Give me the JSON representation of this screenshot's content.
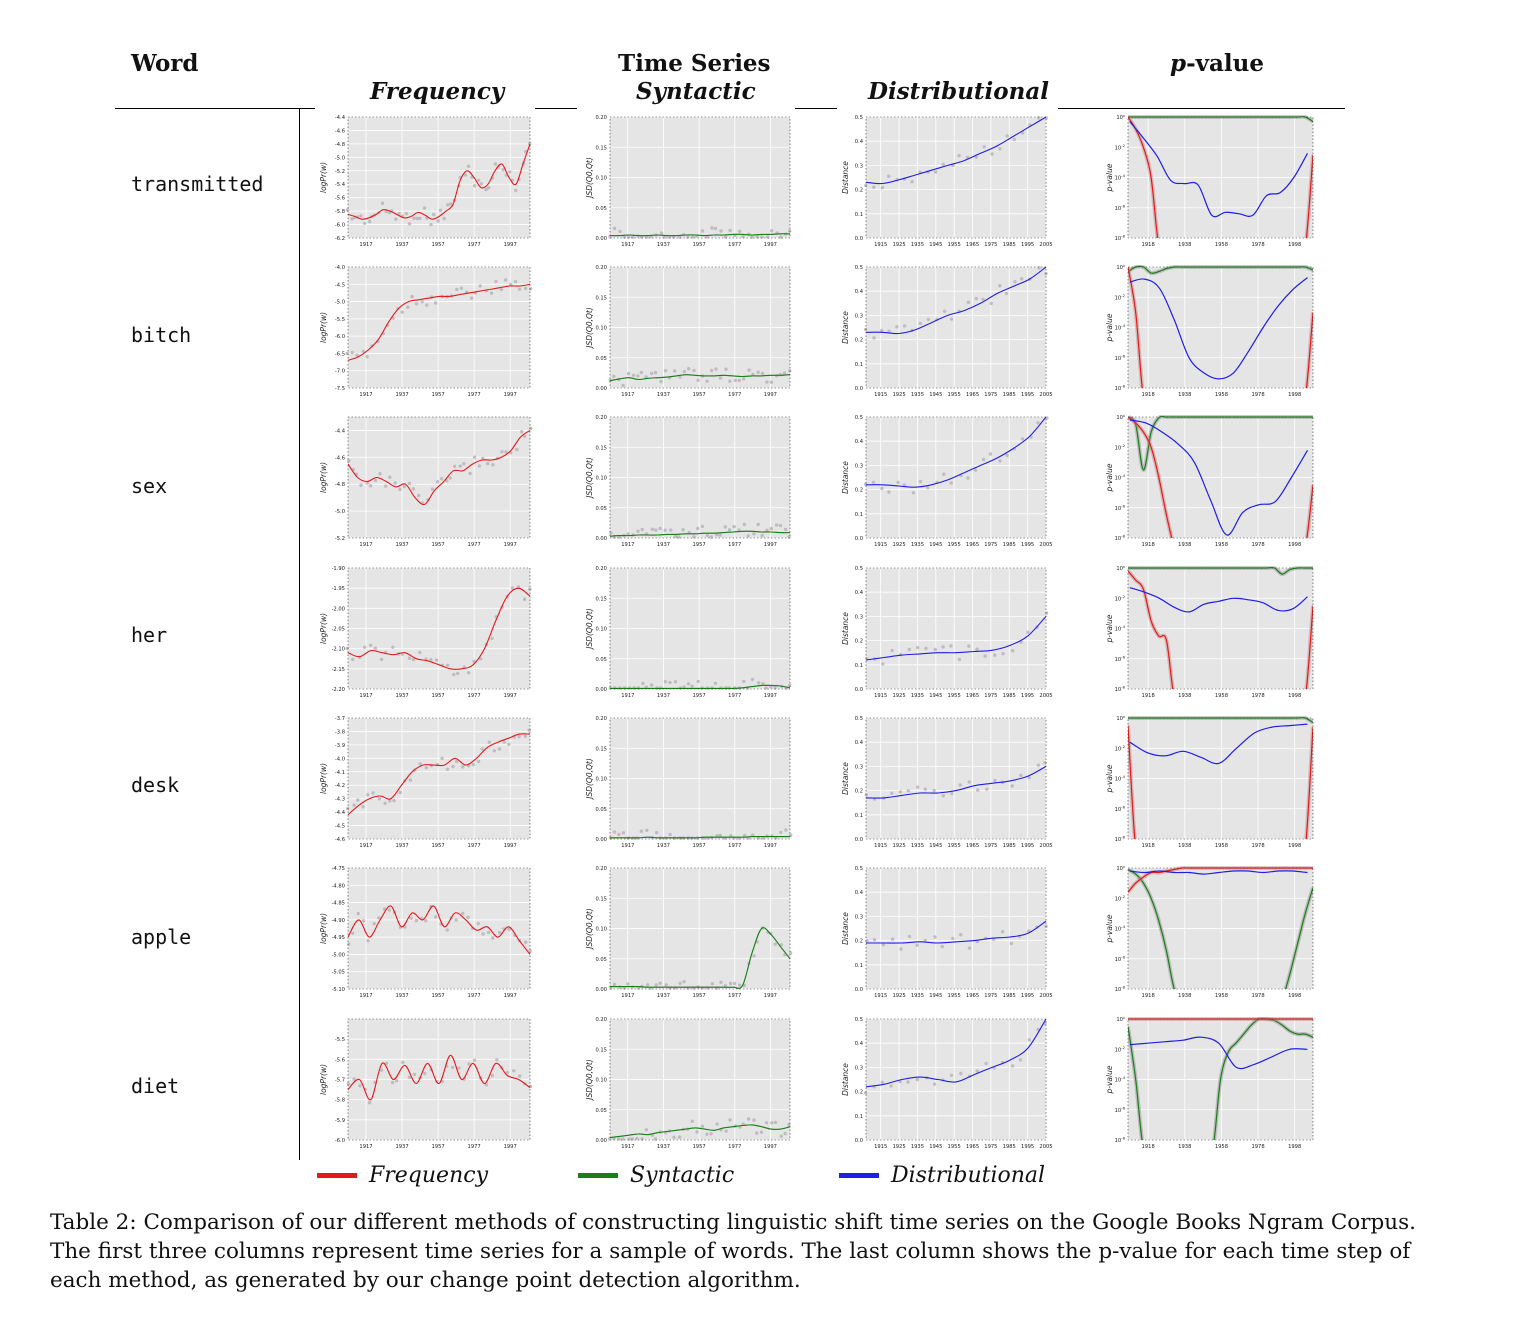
{
  "header": {
    "word": "Word",
    "time_series": "Time Series",
    "frequency": "Frequency",
    "syntactic": "Syntactic",
    "distributional": "Distributional",
    "pvalue_prefix": "p",
    "pvalue_suffix": "-value"
  },
  "axes": {
    "frequency_ylabel": "logPr(w)",
    "syntactic_ylabel": "JSD(Q0,Qt)",
    "distributional_ylabel": "Distance",
    "pvalue_ylabel": "p-value",
    "ts_xticks": [
      "1917",
      "1937",
      "1957",
      "1977",
      "1997"
    ],
    "dist_xticks": [
      "1915",
      "1925",
      "1935",
      "1945",
      "1955",
      "1965",
      "1975",
      "1985",
      "1995",
      "2005"
    ],
    "pv_xticks": [
      "1918",
      "1938",
      "1958",
      "1978",
      "1998"
    ],
    "syn_yticks": [
      "0.00",
      "0.05",
      "0.10",
      "0.15",
      "0.20"
    ],
    "dist_yticks": [
      "0.0",
      "0.1",
      "0.2",
      "0.3",
      "0.4",
      "0.5"
    ],
    "pv_yticks": [
      "10^-8",
      "10^-6",
      "10^-4",
      "10^-2",
      "10^0"
    ]
  },
  "colors": {
    "frequency": "#e31a1c",
    "syntactic": "#1a7f1a",
    "distributional": "#1f1fe6",
    "plot_bg": "#e5e5e5"
  },
  "rows": [
    {
      "word": "transmitted",
      "freq": {
        "yticks": [
          "-4.4",
          "-4.6",
          "-4.8",
          "-5.0",
          "-5.2",
          "-5.4",
          "-5.6",
          "-5.8",
          "-6.0",
          "-6.2"
        ],
        "ymin": -6.2,
        "ymax": -4.4,
        "values": [
          -5.85,
          -5.88,
          -5.92,
          -5.9,
          -5.85,
          -5.78,
          -5.8,
          -5.85,
          -5.9,
          -5.88,
          -5.82,
          -5.86,
          -5.92,
          -5.88,
          -5.8,
          -5.7,
          -5.35,
          -5.2,
          -5.3,
          -5.45,
          -5.4,
          -5.2,
          -5.1,
          -5.3,
          -5.4,
          -5.1,
          -4.8
        ]
      },
      "syn": {
        "values": [
          0.004,
          0.004,
          0.005,
          0.004,
          0.004,
          0.005,
          0.004,
          0.004,
          0.005,
          0.005,
          0.004,
          0.005,
          0.005,
          0.006,
          0.006,
          0.005,
          0.006,
          0.006,
          0.007,
          0.007
        ]
      },
      "dist": {
        "values": [
          0.23,
          0.225,
          0.24,
          0.26,
          0.28,
          0.3,
          0.32,
          0.35,
          0.38,
          0.42,
          0.46,
          0.5
        ]
      },
      "pv": {
        "freq": [
          0,
          -0.8,
          -2.0,
          -4,
          -8.5,
          -9,
          -9,
          -9,
          -9,
          -9,
          -9,
          -9,
          -9,
          -9,
          -9,
          -9,
          -9,
          -9,
          -9,
          -9,
          -9,
          -9,
          -9,
          -9,
          -2.5
        ],
        "syn": [
          0,
          0,
          0,
          0,
          0,
          0,
          0,
          0,
          0,
          0,
          0,
          0,
          0,
          0,
          0,
          0,
          0,
          0,
          0,
          0,
          0,
          0,
          0,
          0,
          -0.3
        ],
        "dist": [
          -0.3,
          -1.4,
          -2.6,
          -4.2,
          -4.4,
          -4.5,
          -6.5,
          -6.3,
          -6.4,
          -6.5,
          -5.2,
          -5.0,
          -4.0,
          -2.4
        ]
      }
    },
    {
      "word": "bitch",
      "freq": {
        "yticks": [
          "-4.0",
          "-4.5",
          "-5.0",
          "-5.5",
          "-6.0",
          "-6.5",
          "-7.0",
          "-7.5"
        ],
        "ymin": -7.5,
        "ymax": -4.0,
        "values": [
          -6.7,
          -6.6,
          -6.4,
          -6.1,
          -5.6,
          -5.2,
          -5.0,
          -4.95,
          -4.9,
          -4.85,
          -4.85,
          -4.8,
          -4.75,
          -4.7,
          -4.65,
          -4.6,
          -4.55,
          -4.55,
          -4.5
        ]
      },
      "syn": {
        "values": [
          0.012,
          0.015,
          0.017,
          0.014,
          0.016,
          0.017,
          0.018,
          0.02,
          0.022,
          0.021,
          0.02,
          0.02,
          0.021,
          0.02,
          0.019,
          0.02,
          0.02,
          0.021,
          0.021,
          0.022
        ]
      },
      "dist": {
        "values": [
          0.23,
          0.23,
          0.225,
          0.24,
          0.27,
          0.3,
          0.32,
          0.35,
          0.39,
          0.42,
          0.45,
          0.5
        ]
      },
      "pv": {
        "freq": [
          0,
          -3,
          -9,
          -9,
          -9,
          -9,
          -9,
          -9,
          -9,
          -9,
          -9,
          -9,
          -9,
          -9,
          -9,
          -9,
          -9,
          -9,
          -9,
          -9,
          -9,
          -9,
          -9,
          -9,
          -3
        ],
        "syn": [
          -0.3,
          0,
          0,
          -0.4,
          -0.3,
          -0.1,
          0,
          0,
          0,
          0,
          0,
          0,
          0,
          0,
          0,
          0,
          0,
          0,
          0,
          0,
          0,
          0,
          0,
          0,
          -0.2
        ],
        "dist": [
          -1.0,
          -0.8,
          -1.4,
          -3.5,
          -6.0,
          -7.0,
          -7.4,
          -7.0,
          -5.6,
          -4.0,
          -2.6,
          -1.5,
          -0.7
        ]
      }
    },
    {
      "word": "sex",
      "freq": {
        "yticks": [
          "-4.4",
          "-4.6",
          "-4.8",
          "-5.0",
          "-5.2"
        ],
        "ymin": -5.2,
        "ymax": -4.3,
        "values": [
          -4.65,
          -4.75,
          -4.78,
          -4.75,
          -4.78,
          -4.82,
          -4.8,
          -4.9,
          -4.95,
          -4.85,
          -4.78,
          -4.7,
          -4.7,
          -4.65,
          -4.62,
          -4.62,
          -4.6,
          -4.55,
          -4.45,
          -4.4
        ]
      },
      "syn": {
        "values": [
          0.003,
          0.004,
          0.004,
          0.005,
          0.005,
          0.005,
          0.006,
          0.006,
          0.007,
          0.007,
          0.008,
          0.008,
          0.009,
          0.01,
          0.011,
          0.011,
          0.01,
          0.01,
          0.009,
          0.009
        ]
      },
      "dist": {
        "values": [
          0.22,
          0.22,
          0.215,
          0.21,
          0.22,
          0.24,
          0.27,
          0.3,
          0.33,
          0.37,
          0.42,
          0.5
        ]
      },
      "pv": {
        "freq": [
          0,
          -0.4,
          -1.0,
          -2.0,
          -4.0,
          -6.5,
          -8.5,
          -9,
          -9,
          -9,
          -9,
          -9,
          -9,
          -9,
          -9,
          -9,
          -9,
          -9,
          -9,
          -9,
          -9,
          -9,
          -9,
          -9,
          -4.5
        ],
        "syn": [
          0,
          -0.5,
          -3.5,
          -1.0,
          -0.05,
          0,
          0,
          0,
          0,
          0,
          0,
          0,
          0,
          0,
          0,
          0,
          0,
          0,
          0,
          0,
          0,
          0,
          0,
          0,
          0
        ],
        "dist": [
          -0.2,
          -0.4,
          -1.0,
          -1.8,
          -3.0,
          -5.5,
          -7.8,
          -6.3,
          -5.8,
          -5.6,
          -4.0,
          -2.2
        ]
      }
    },
    {
      "word": "her",
      "freq": {
        "yticks": [
          "-1.90",
          "-1.95",
          "-2.00",
          "-2.05",
          "-2.10",
          "-2.15",
          "-2.20"
        ],
        "ymin": -2.2,
        "ymax": -1.9,
        "values": [
          -2.11,
          -2.12,
          -2.105,
          -2.11,
          -2.115,
          -2.11,
          -2.125,
          -2.13,
          -2.14,
          -2.15,
          -2.15,
          -2.14,
          -2.1,
          -2.03,
          -1.97,
          -1.95,
          -1.97
        ]
      },
      "syn": {
        "values": [
          0.001,
          0.001,
          0.001,
          0.001,
          0.001,
          0.001,
          0.001,
          0.001,
          0.001,
          0.001,
          0.001,
          0.001,
          0.001,
          0.001,
          0.002,
          0.004,
          0.006,
          0.006,
          0.005,
          0.002
        ]
      },
      "dist": {
        "values": [
          0.12,
          0.13,
          0.14,
          0.145,
          0.15,
          0.15,
          0.155,
          0.16,
          0.18,
          0.22,
          0.3
        ]
      },
      "pv": {
        "freq": [
          -0.2,
          -0.8,
          -1.4,
          -3.5,
          -4.5,
          -4.8,
          -9,
          -9,
          -9,
          -9,
          -9,
          -9,
          -9,
          -9,
          -9,
          -9,
          -9,
          -9,
          -9,
          -9,
          -9,
          -9,
          -9,
          -9,
          -2.5
        ],
        "syn": [
          0,
          0,
          0,
          0,
          0,
          0,
          0,
          0,
          0,
          0,
          0,
          0,
          0,
          0,
          0,
          0,
          0,
          0,
          0,
          0,
          -0.4,
          -0.1,
          0,
          0,
          0
        ],
        "dist": [
          -1.3,
          -1.6,
          -2.0,
          -2.6,
          -2.9,
          -2.4,
          -2.2,
          -2.0,
          -2.1,
          -2.3,
          -2.8,
          -2.7,
          -1.9
        ]
      }
    },
    {
      "word": "desk",
      "freq": {
        "yticks": [
          "-3.7",
          "-3.8",
          "-3.9",
          "-4.0",
          "-4.1",
          "-4.2",
          "-4.3",
          "-4.4",
          "-4.5",
          "-4.6"
        ],
        "ymin": -4.6,
        "ymax": -3.7,
        "values": [
          -4.42,
          -4.35,
          -4.3,
          -4.28,
          -4.3,
          -4.2,
          -4.1,
          -4.05,
          -4.05,
          -4.05,
          -4.0,
          -4.05,
          -4.0,
          -3.92,
          -3.88,
          -3.85,
          -3.82,
          -3.82
        ]
      },
      "syn": {
        "values": [
          0.002,
          0.002,
          0.002,
          0.002,
          0.003,
          0.002,
          0.002,
          0.002,
          0.002,
          0.002,
          0.003,
          0.003,
          0.003,
          0.003,
          0.003,
          0.004,
          0.004,
          0.004,
          0.004,
          0.004
        ]
      },
      "dist": {
        "values": [
          0.17,
          0.17,
          0.18,
          0.19,
          0.19,
          0.2,
          0.22,
          0.23,
          0.24,
          0.26,
          0.3
        ]
      },
      "pv": {
        "freq": [
          -0.5,
          -9,
          -9,
          -9,
          -9,
          -9,
          -9,
          -9,
          -9,
          -9,
          -9,
          -9,
          -9,
          -9,
          -9,
          -9,
          -9,
          -9,
          -9,
          -9,
          -9,
          -9,
          -9,
          -9,
          -0.6
        ],
        "syn": [
          0,
          0,
          0,
          0,
          0,
          0,
          0,
          0,
          0,
          0,
          0,
          0,
          0,
          0,
          0,
          0,
          0,
          0,
          0,
          0,
          0,
          0,
          0,
          0,
          -0.3
        ],
        "dist": [
          -1.6,
          -2.3,
          -2.5,
          -2.2,
          -2.6,
          -3.0,
          -2.0,
          -1.0,
          -0.6,
          -0.5,
          -0.4
        ]
      }
    },
    {
      "word": "apple",
      "freq": {
        "yticks": [
          "-4.75",
          "-4.80",
          "-4.85",
          "-4.90",
          "-4.95",
          "-5.00",
          "-5.05",
          "-5.10"
        ],
        "ymin": -5.1,
        "ymax": -4.75,
        "values": [
          -4.95,
          -4.9,
          -4.95,
          -4.9,
          -4.86,
          -4.92,
          -4.88,
          -4.9,
          -4.86,
          -4.92,
          -4.88,
          -4.9,
          -4.93,
          -4.92,
          -4.95,
          -4.92,
          -4.96,
          -5.0
        ]
      },
      "syn": {
        "values": [
          0.004,
          0.004,
          0.004,
          0.004,
          0.003,
          0.003,
          0.003,
          0.003,
          0.003,
          0.003,
          0.003,
          0.003,
          0.003,
          0.003,
          0.006,
          0.06,
          0.1,
          0.09,
          0.07,
          0.05
        ]
      },
      "dist": {
        "values": [
          0.19,
          0.19,
          0.19,
          0.195,
          0.19,
          0.195,
          0.2,
          0.21,
          0.215,
          0.23,
          0.28
        ]
      },
      "pv": {
        "freq": [
          -1.6,
          -1.0,
          -0.6,
          -0.3,
          -0.3,
          -0.2,
          -0.1,
          0,
          0,
          0,
          0,
          0,
          0,
          0,
          0,
          0,
          0,
          0,
          0,
          0,
          0,
          0,
          0,
          0,
          0
        ],
        "syn": [
          -0.1,
          -0.4,
          -1.0,
          -2.0,
          -3.5,
          -5.5,
          -8.0,
          -9,
          -9,
          -9,
          -9,
          -9,
          -9,
          -9,
          -9,
          -9,
          -9,
          -9,
          -9,
          -9,
          -9,
          -7,
          -5,
          -3,
          -1.3
        ],
        "dist": [
          -0.2,
          -0.3,
          -0.2,
          -0.3,
          -0.3,
          -0.4,
          -0.3,
          -0.2,
          -0.2,
          -0.3,
          -0.2,
          -0.2,
          -0.3
        ]
      }
    },
    {
      "word": "diet",
      "freq": {
        "yticks": [
          "-5.5",
          "-5.6",
          "-5.7",
          "-5.8",
          "-5.9",
          "-6.0"
        ],
        "ymin": -6.0,
        "ymax": -5.4,
        "values": [
          -5.75,
          -5.7,
          -5.8,
          -5.62,
          -5.7,
          -5.63,
          -5.72,
          -5.62,
          -5.72,
          -5.58,
          -5.7,
          -5.62,
          -5.72,
          -5.62,
          -5.68,
          -5.7,
          -5.74
        ]
      },
      "syn": {
        "values": [
          0.004,
          0.006,
          0.008,
          0.01,
          0.009,
          0.012,
          0.014,
          0.016,
          0.018,
          0.02,
          0.018,
          0.016,
          0.02,
          0.022,
          0.024,
          0.025,
          0.022,
          0.018,
          0.018,
          0.022
        ]
      },
      "dist": {
        "values": [
          0.22,
          0.23,
          0.25,
          0.26,
          0.25,
          0.24,
          0.27,
          0.3,
          0.33,
          0.38,
          0.5
        ]
      },
      "pv": {
        "freq": [
          0,
          0,
          0,
          0,
          0,
          0,
          0,
          0,
          0,
          0,
          0,
          0,
          0,
          0,
          0,
          0,
          0,
          0,
          0,
          0,
          0,
          0,
          0,
          0,
          0
        ],
        "syn": [
          -0.5,
          -4,
          -9,
          -9,
          -9,
          -9,
          -9,
          -9,
          -9,
          -9,
          -9,
          -9,
          -4,
          -2.2,
          -1.6,
          -1.0,
          -0.4,
          0,
          0,
          -0.1,
          -0.4,
          -0.8,
          -1.0,
          -1.0,
          -1.2
        ],
        "dist": [
          -1.7,
          -1.6,
          -1.5,
          -1.4,
          -1.2,
          -1.6,
          -3.2,
          -3.0,
          -2.5,
          -2.0,
          -2.0
        ]
      }
    }
  ],
  "legend": [
    {
      "label": "Frequency",
      "color": "#e31a1c"
    },
    {
      "label": "Syntactic",
      "color": "#1a7f1a"
    },
    {
      "label": "Distributional",
      "color": "#1f1fe6"
    }
  ],
  "caption": "Table 2: Comparison of our different methods of constructing linguistic shift time series on the Google Books Ngram Corpus. The first three columns represent time series for a sample of words. The last column shows the p-value for each time step of each method, as generated by our change point detection algorithm."
}
